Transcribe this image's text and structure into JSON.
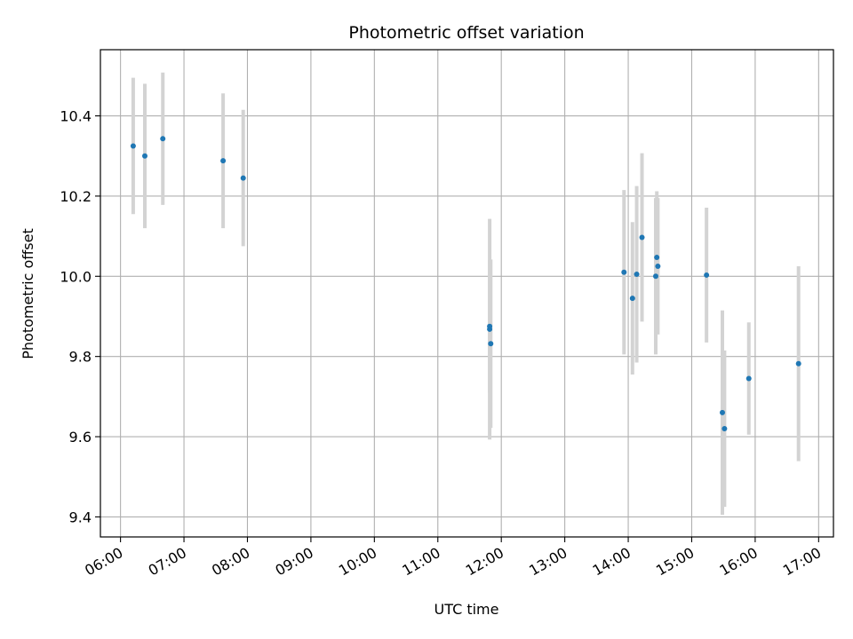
{
  "chart_data": {
    "type": "scatter",
    "title": "Photometric offset variation",
    "xlabel": "UTC time",
    "ylabel": "Photometric offset",
    "x_tick_labels": [
      "06:00",
      "07:00",
      "08:00",
      "09:00",
      "10:00",
      "11:00",
      "12:00",
      "13:00",
      "14:00",
      "15:00",
      "16:00",
      "17:00"
    ],
    "y_ticks": [
      9.4,
      9.6,
      9.8,
      10.0,
      10.2,
      10.4
    ],
    "y_tick_labels": [
      "9.4",
      "9.6",
      "9.8",
      "10.0",
      "10.2",
      "10.4"
    ],
    "xlim": [
      "05:41",
      "17:14"
    ],
    "ylim": [
      9.35,
      10.565
    ],
    "grid": true,
    "colors": {
      "point": "#1f77b4",
      "errorbar": "#d3d3d3",
      "grid": "#b0b0b0"
    },
    "points": [
      {
        "x": "06:12",
        "y": 10.325,
        "err": 0.17
      },
      {
        "x": "06:23",
        "y": 10.3,
        "err": 0.18
      },
      {
        "x": "06:40",
        "y": 10.343,
        "err": 0.165
      },
      {
        "x": "07:37",
        "y": 10.288,
        "err": 0.168
      },
      {
        "x": "07:56",
        "y": 10.245,
        "err": 0.17
      },
      {
        "x": "11:49",
        "y": 9.868,
        "err": 0.275
      },
      {
        "x": "11:49",
        "y": 9.875,
        "err": 0.165
      },
      {
        "x": "11:50",
        "y": 9.832,
        "err": 0.21
      },
      {
        "x": "13:56",
        "y": 10.01,
        "err": 0.205
      },
      {
        "x": "14:04",
        "y": 9.945,
        "err": 0.19
      },
      {
        "x": "14:08",
        "y": 10.005,
        "err": 0.22
      },
      {
        "x": "14:13",
        "y": 10.097,
        "err": 0.21
      },
      {
        "x": "14:26",
        "y": 10.0,
        "err": 0.195
      },
      {
        "x": "14:27",
        "y": 10.047,
        "err": 0.165
      },
      {
        "x": "14:28",
        "y": 10.025,
        "err": 0.17
      },
      {
        "x": "15:14",
        "y": 10.003,
        "err": 0.168
      },
      {
        "x": "15:29",
        "y": 9.66,
        "err": 0.255
      },
      {
        "x": "15:31",
        "y": 9.62,
        "err": 0.195
      },
      {
        "x": "15:54",
        "y": 9.745,
        "err": 0.14
      },
      {
        "x": "16:41",
        "y": 9.782,
        "err": 0.243
      }
    ]
  }
}
